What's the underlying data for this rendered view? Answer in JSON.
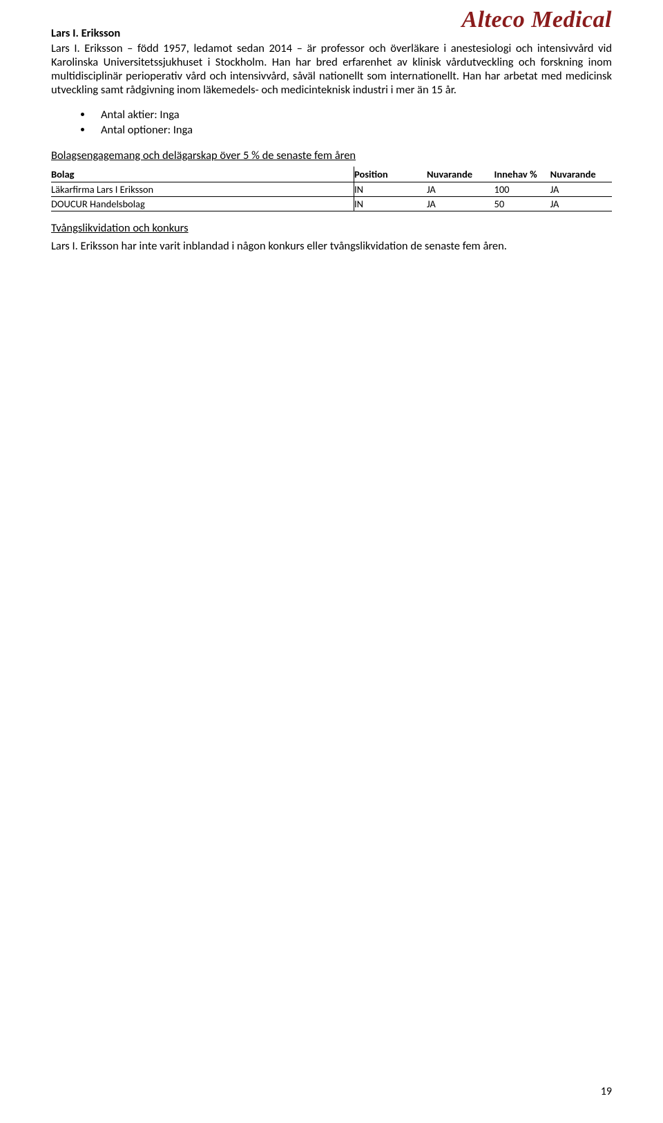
{
  "brand": "Alteco Medical",
  "person": {
    "name_heading": "Lars I. Eriksson",
    "paragraph": "Lars I. Eriksson – född 1957, ledamot sedan 2014 – är professor och överläkare i anestesiologi och intensivvård vid Karolinska Universitetssjukhuset i Stockholm. Han har bred erfarenhet av klinisk vårdutveckling och forskning inom multidisciplinär perioperativ vård och intensivvård, såväl nationellt som internationellt. Han har arbetat med medicinsk utveckling samt rådgivning inom läkemedels- och medicinteknisk industri i mer än 15 år."
  },
  "bullets": [
    "Antal aktier: Inga",
    "Antal optioner: Inga"
  ],
  "holdings_heading": "Bolagsengagemang och delägarskap över 5 % de senaste fem åren",
  "table": {
    "columns": [
      "Bolag",
      "Position",
      "Nuvarande",
      "Innehav %",
      "Nuvarande"
    ],
    "rows": [
      [
        "Läkarfirma Lars I Eriksson",
        "IN",
        "JA",
        "100",
        "JA"
      ],
      [
        "DOUCUR Handelsbolag",
        "IN",
        "JA",
        "50",
        "JA"
      ]
    ]
  },
  "liquidation": {
    "heading": "Tvångslikvidation och konkurs",
    "text": "Lars I. Eriksson har inte varit inblandad i någon konkurs eller tvångslikvidation de senaste fem åren."
  },
  "page_number": "19",
  "colors": {
    "brand": "#8a1c1c",
    "text": "#000000",
    "background": "#ffffff",
    "rule": "#000000"
  },
  "typography": {
    "body_font": "Calibri",
    "body_size_pt": 12,
    "brand_font": "Georgia italic bold",
    "brand_size_pt": 26
  }
}
